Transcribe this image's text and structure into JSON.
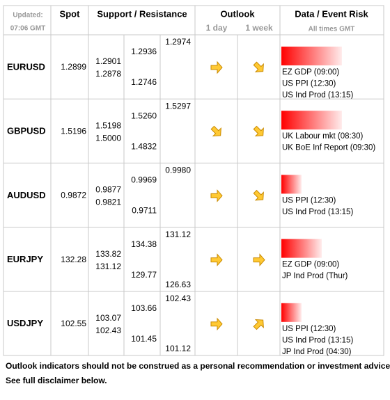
{
  "header": {
    "updated_label": "Updated:",
    "updated_time": "07:06 GMT",
    "spot": "Spot",
    "support_resistance": "Support / Resistance",
    "outlook": "Outlook",
    "outlook_day": "1 day",
    "outlook_week": "1 week",
    "data_event_risk": "Data / Event Risk",
    "times_note": "All times GMT"
  },
  "rows": [
    {
      "pair": "EURUSD",
      "spot": "1.2899",
      "col1": [
        "1.2901",
        "1.2878"
      ],
      "col2": [
        "1.2936",
        "1.2746"
      ],
      "col3": [
        "1.2974"
      ],
      "outlook_day": "right",
      "outlook_week": "down-right",
      "risk": 3,
      "events": [
        "EZ GDP (09:00)",
        "US PPI (12:30)",
        "US Ind Prod (13:15)"
      ]
    },
    {
      "pair": "GBPUSD",
      "spot": "1.5196",
      "col1": [
        "1.5198",
        "1.5000"
      ],
      "col2": [
        "1.5260",
        "1.4832"
      ],
      "col3": [
        "1.5297"
      ],
      "outlook_day": "down-right",
      "outlook_week": "down-right",
      "risk": 3,
      "events": [
        "UK Labour mkt (08:30)",
        "UK BoE Inf Report (09:30)"
      ]
    },
    {
      "pair": "AUDUSD",
      "spot": "0.9872",
      "col1": [
        "0.9877",
        "0.9821"
      ],
      "col2": [
        "0.9969",
        "0.9711"
      ],
      "col3": [
        "0.9980"
      ],
      "outlook_day": "right",
      "outlook_week": "down-right",
      "risk": 1,
      "events": [
        "US PPI (12:30)",
        "US Ind Prod (13:15)"
      ]
    },
    {
      "pair": "EURJPY",
      "spot": "132.28",
      "col1": [
        "133.82",
        "131.12"
      ],
      "col2": [
        "134.38",
        "129.77"
      ],
      "col3": [
        "131.12",
        "126.63"
      ],
      "outlook_day": "right",
      "outlook_week": "right",
      "risk": 2,
      "events": [
        "EZ GDP (09:00)",
        "JP Ind Prod (Thur)"
      ]
    },
    {
      "pair": "USDJPY",
      "spot": "102.55",
      "col1": [
        "103.07",
        "102.43"
      ],
      "col2": [
        "103.66",
        "101.45"
      ],
      "col3": [
        "102.43",
        "101.12"
      ],
      "outlook_day": "right",
      "outlook_week": "up-right",
      "risk": 1,
      "events": [
        "US PPI (12:30)",
        "US Ind Prod (13:15)",
        "JP Ind Prod (04:30)"
      ]
    }
  ],
  "footer": {
    "line1": "Outlook indicators should not be construed as a personal recommendation or investment advice.",
    "line2": "See full disclaimer below."
  }
}
